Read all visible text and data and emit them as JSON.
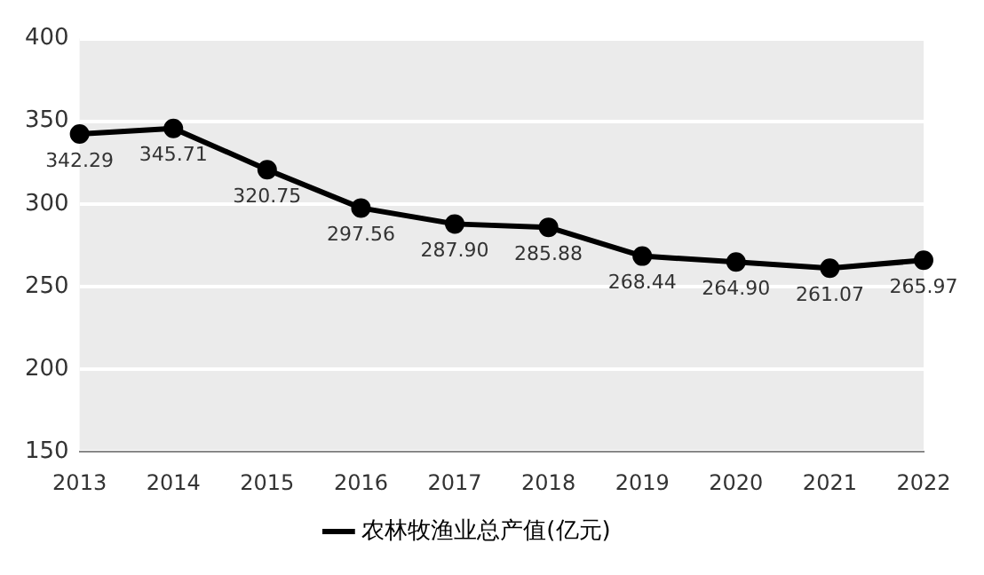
{
  "chart_data": {
    "type": "line",
    "categories": [
      "2013",
      "2014",
      "2015",
      "2016",
      "2017",
      "2018",
      "2019",
      "2020",
      "2021",
      "2022"
    ],
    "series": [
      {
        "name": "农林牧渔业总产值(亿元)",
        "color": "#000000",
        "values": [
          342.29,
          345.71,
          320.75,
          297.56,
          287.9,
          285.88,
          268.44,
          264.9,
          261.07,
          265.97
        ],
        "value_labels": [
          "342.29",
          "345.71",
          "320.75",
          "297.56",
          "287.90",
          "285.88",
          "268.44",
          "264.90",
          "261.07",
          "265.97"
        ]
      }
    ],
    "ylim": [
      150,
      400
    ],
    "yticks": [
      150,
      200,
      250,
      300,
      350,
      400
    ],
    "grid": "y",
    "legend": "bottom",
    "marker": "circle",
    "line_style": "solid"
  }
}
